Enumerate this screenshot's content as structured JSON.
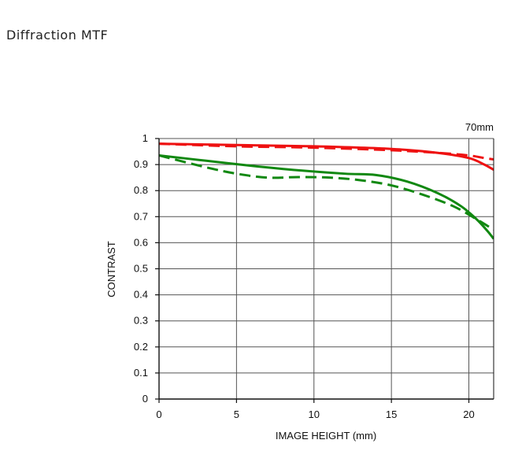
{
  "title": "Diffraction  MTF",
  "chart_data": {
    "type": "line",
    "annotation": "70mm",
    "xlabel": "IMAGE HEIGHT (mm)",
    "ylabel": "CONTRAST",
    "xlim": [
      0,
      21.6
    ],
    "ylim": [
      0,
      1
    ],
    "xticks": [
      0,
      5,
      10,
      15,
      20
    ],
    "yticks": [
      0,
      0.1,
      0.2,
      0.3,
      0.4,
      0.5,
      0.6,
      0.7,
      0.8,
      0.9,
      1
    ],
    "ytick_labels": [
      "0",
      "0.1",
      "0.2",
      "0.3",
      "0.4",
      "0.5",
      "0.6",
      "0.7",
      "0.8",
      "0.9",
      "1"
    ],
    "grid": true,
    "series": [
      {
        "color": "#ee1111",
        "dash": "solid",
        "points": [
          [
            0,
            0.98
          ],
          [
            5,
            0.975
          ],
          [
            10,
            0.97
          ],
          [
            15,
            0.96
          ],
          [
            18,
            0.945
          ],
          [
            20,
            0.925
          ],
          [
            21,
            0.9
          ],
          [
            21.6,
            0.88
          ]
        ]
      },
      {
        "color": "#ee1111",
        "dash": "dashed",
        "points": [
          [
            0,
            0.98
          ],
          [
            5,
            0.97
          ],
          [
            10,
            0.965
          ],
          [
            15,
            0.955
          ],
          [
            18,
            0.945
          ],
          [
            20,
            0.935
          ],
          [
            21,
            0.925
          ],
          [
            21.6,
            0.92
          ]
        ]
      },
      {
        "color": "#118811",
        "dash": "solid",
        "points": [
          [
            0,
            0.935
          ],
          [
            3,
            0.915
          ],
          [
            6,
            0.895
          ],
          [
            9,
            0.878
          ],
          [
            12,
            0.865
          ],
          [
            14,
            0.86
          ],
          [
            16,
            0.835
          ],
          [
            18,
            0.79
          ],
          [
            19.5,
            0.74
          ],
          [
            20.5,
            0.69
          ],
          [
            21.2,
            0.645
          ],
          [
            21.6,
            0.615
          ]
        ]
      },
      {
        "color": "#118811",
        "dash": "dashed",
        "points": [
          [
            0,
            0.935
          ],
          [
            3,
            0.89
          ],
          [
            5,
            0.865
          ],
          [
            7,
            0.85
          ],
          [
            9,
            0.852
          ],
          [
            11,
            0.85
          ],
          [
            13,
            0.84
          ],
          [
            15,
            0.82
          ],
          [
            17,
            0.785
          ],
          [
            19,
            0.74
          ],
          [
            20.5,
            0.69
          ],
          [
            21.6,
            0.65
          ]
        ]
      }
    ],
    "colors": {
      "axis": "#111111",
      "grid": "#555555"
    }
  }
}
